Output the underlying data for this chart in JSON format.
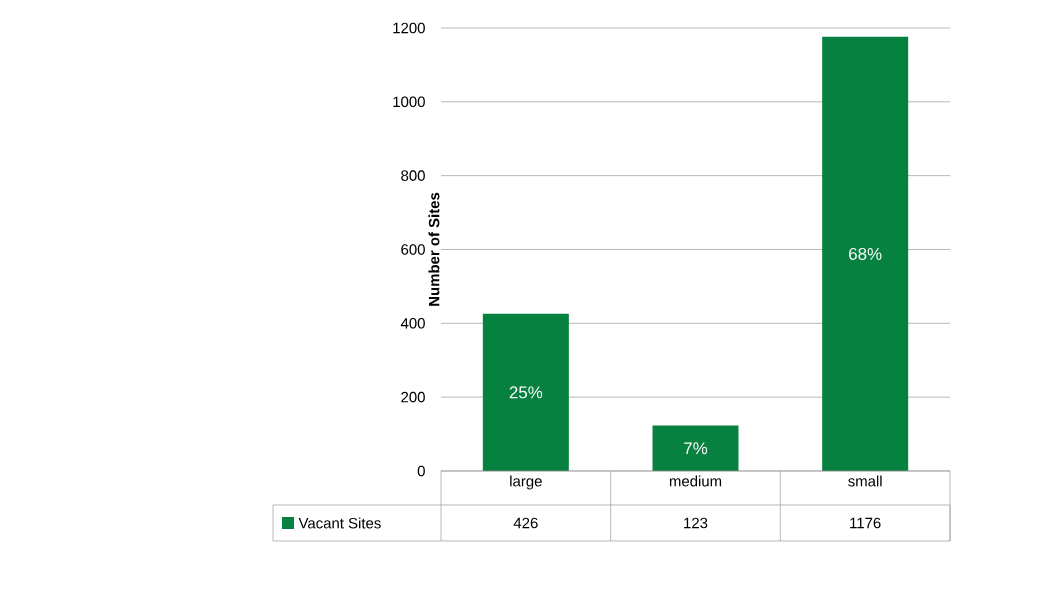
{
  "chart_data": {
    "type": "bar",
    "ylabel": "Number of Sites",
    "categories": [
      "large",
      "medium",
      "small"
    ],
    "series": [
      {
        "name": "Vacant Sites",
        "color": "#078140",
        "values": [
          426,
          123,
          1176
        ]
      }
    ],
    "value_labels": [
      "25%",
      "7%",
      "68%"
    ],
    "ylim": [
      0,
      1200
    ],
    "yticks": [
      0,
      200,
      400,
      600,
      800,
      1000,
      1200
    ],
    "grid": "y",
    "legend": "bottom",
    "data_labels": true
  }
}
